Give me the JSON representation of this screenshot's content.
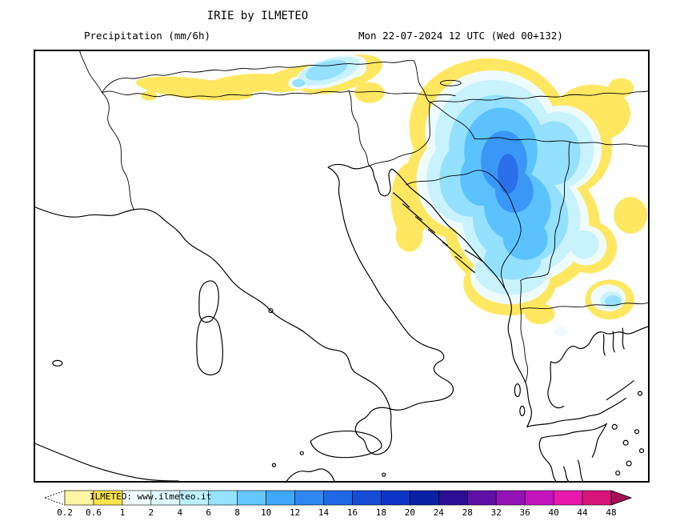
{
  "header": {
    "title": "IRIE by ILMETEO",
    "product_label": "Precipitation (mm/6h)",
    "validity_label": "Mon 22-07-2024 12 UTC (Wed 00+132)"
  },
  "palette": {
    "l1_yellow": "#FFE761",
    "l2_pale": "#EEFCFF",
    "l3_light_cyan": "#C9F2FF",
    "l4_cyan": "#93E0FF",
    "l5_sky": "#5BC2FF",
    "l6_blue": "#3B97F7",
    "l7_deep_blue": "#2A6FE8"
  },
  "colorbar": {
    "watermark": "ILMETEO: www.ilmeteo.it",
    "ticks": [
      "0.2",
      "0.6",
      "1",
      "2",
      "4",
      "6",
      "8",
      "10",
      "12",
      "14",
      "16",
      "18",
      "20",
      "24",
      "28",
      "32",
      "36",
      "40",
      "44",
      "48"
    ],
    "tip_left_color": "#FFFFFF",
    "tip_right_color": "#A50F55",
    "segment_colors": [
      "#FFF4A3",
      "#FFE34D",
      "#F2FFFF",
      "#DDF9FF",
      "#BDF0FF",
      "#96E2FF",
      "#64C8FF",
      "#3FA8FB",
      "#2F88F2",
      "#1F68E5",
      "#144CD6",
      "#0B34C2",
      "#0A21A5",
      "#2A0E96",
      "#5E10A6",
      "#9312B6",
      "#C414C0",
      "#E818AC",
      "#D91478"
    ]
  }
}
